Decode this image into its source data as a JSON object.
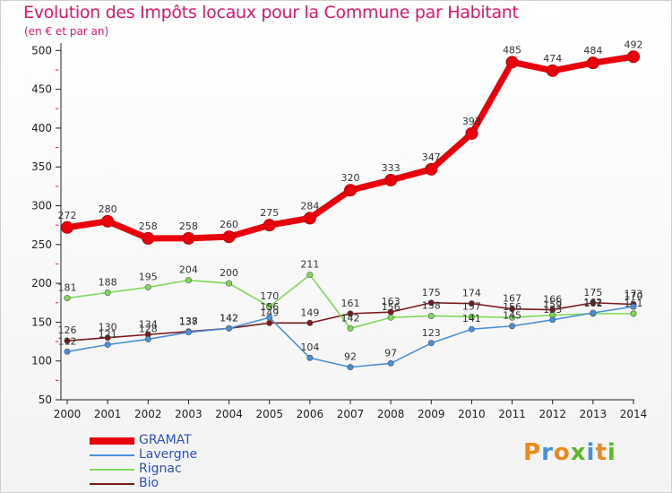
{
  "chart_data": {
    "type": "line",
    "title": "Evolution des Impôts locaux pour la Commune par Habitant",
    "subtitle": "(en € et par an)",
    "xlabel": "",
    "ylabel": "",
    "x": [
      "2000",
      "2001",
      "2002",
      "2003",
      "2004",
      "2005",
      "2006",
      "2007",
      "2008",
      "2009",
      "2010",
      "2011",
      "2012",
      "2013",
      "2014"
    ],
    "yticks": [
      50,
      100,
      150,
      200,
      250,
      300,
      350,
      400,
      450,
      500
    ],
    "ylim": [
      50,
      505
    ],
    "grid": false,
    "legend_position": "bottom-left",
    "series": [
      {
        "name": "GRAMAT",
        "color": "#e8000b",
        "values": [
          272,
          280,
          258,
          258,
          260,
          275,
          284,
          320,
          333,
          347,
          393,
          485,
          474,
          484,
          492
        ]
      },
      {
        "name": "Lavergne",
        "color": "#4a90d9",
        "values": [
          112,
          121,
          128,
          137,
          142,
          156,
          104,
          92,
          97,
          123,
          141,
          145,
          153,
          162,
          170
        ]
      },
      {
        "name": "Rignac",
        "color": "#7ed957",
        "values": [
          181,
          188,
          195,
          204,
          200,
          170,
          211,
          142,
          156,
          158,
          157,
          156,
          159,
          161,
          161
        ]
      },
      {
        "name": "Bio",
        "color": "#7b1a1a",
        "values": [
          126,
          130,
          134,
          138,
          142,
          149,
          149,
          161,
          163,
          175,
          174,
          167,
          166,
          175,
          173
        ]
      }
    ]
  },
  "logo": {
    "letters": [
      {
        "ch": "P",
        "color": "#e98a1c"
      },
      {
        "ch": "r",
        "color": "#4a8fd8"
      },
      {
        "ch": "o",
        "color": "#e98a1c"
      },
      {
        "ch": "x",
        "color": "#5cb832"
      },
      {
        "ch": "i",
        "color": "#4a8fd8"
      },
      {
        "ch": "t",
        "color": "#e98a1c"
      },
      {
        "ch": "i",
        "color": "#5cb832"
      }
    ]
  }
}
